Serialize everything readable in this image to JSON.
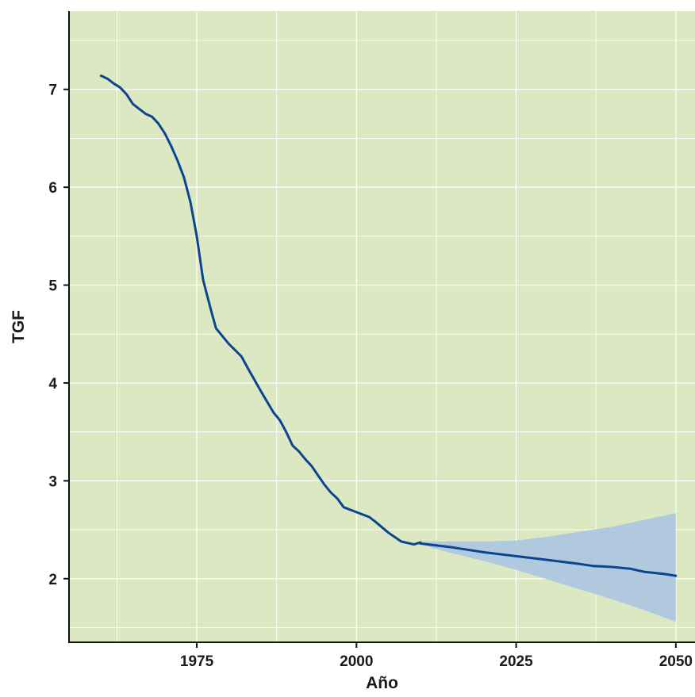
{
  "chart_data": {
    "type": "line",
    "title": "",
    "xlabel": "Año",
    "ylabel": "TGF",
    "xlim": [
      1955,
      2053
    ],
    "ylim": [
      1.35,
      7.8
    ],
    "x_ticks": [
      1975,
      2000,
      2025,
      2050
    ],
    "y_ticks": [
      2,
      3,
      4,
      5,
      6,
      7
    ],
    "x_minor_grid": [
      1962.5,
      1987.5,
      2012.5,
      2037.5
    ],
    "y_minor_grid": [
      1.5,
      2.5,
      3.5,
      4.5,
      5.5,
      6.5,
      7.5
    ],
    "grid": true,
    "background_color": "#dce8c2",
    "grid_color": "#ffffff",
    "line_color": "#0b4591",
    "band_color": "#aec7df",
    "series": [
      {
        "role": "observed",
        "x": [
          1960,
          1961,
          1962,
          1963,
          1964,
          1965,
          1966,
          1967,
          1968,
          1969,
          1970,
          1971,
          1972,
          1973,
          1974,
          1975,
          1976,
          1977,
          1978,
          1980,
          1982,
          1983,
          1985,
          1987,
          1988,
          1989,
          1990,
          1991,
          1992,
          1993,
          1995,
          1996,
          1997,
          1998,
          2000,
          2002,
          2003,
          2005,
          2007,
          2009,
          2010
        ],
        "y": [
          7.14,
          7.11,
          7.06,
          7.02,
          6.95,
          6.85,
          6.8,
          6.75,
          6.72,
          6.65,
          6.55,
          6.42,
          6.27,
          6.1,
          5.85,
          5.5,
          5.05,
          4.8,
          4.56,
          4.4,
          4.27,
          4.15,
          3.92,
          3.7,
          3.62,
          3.5,
          3.36,
          3.3,
          3.22,
          3.15,
          2.96,
          2.88,
          2.82,
          2.73,
          2.68,
          2.63,
          2.58,
          2.47,
          2.38,
          2.35,
          2.37
        ]
      },
      {
        "role": "projection",
        "x": [
          2010,
          2015,
          2020,
          2025,
          2030,
          2035,
          2037,
          2040,
          2043,
          2045,
          2048,
          2050
        ],
        "y": [
          2.36,
          2.32,
          2.27,
          2.23,
          2.19,
          2.15,
          2.13,
          2.12,
          2.1,
          2.07,
          2.05,
          2.03
        ]
      }
    ],
    "uncertainty_band": {
      "x": [
        2010,
        2015,
        2020,
        2025,
        2030,
        2035,
        2040,
        2045,
        2050
      ],
      "upper": [
        2.38,
        2.38,
        2.38,
        2.39,
        2.43,
        2.48,
        2.53,
        2.6,
        2.67
      ],
      "lower": [
        2.35,
        2.26,
        2.18,
        2.09,
        1.99,
        1.89,
        1.79,
        1.68,
        1.56
      ]
    }
  }
}
